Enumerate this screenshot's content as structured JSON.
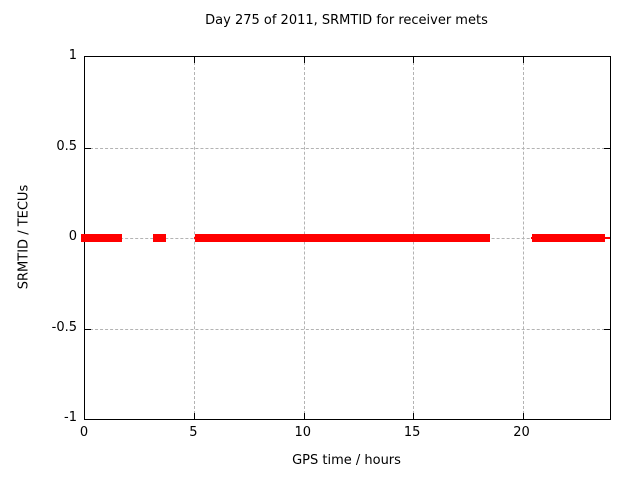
{
  "page": {
    "background_color": "#ffffff",
    "text_color": "#000000"
  },
  "chart_data": {
    "type": "line",
    "style": "gnuplot linespoints, horizontal segments at constant y",
    "title": "Day 275 of 2011, SRMTID for receiver mets",
    "xlabel": "GPS time / hours",
    "ylabel": "SRMTID / TECUs",
    "xlim": [
      0,
      24
    ],
    "ylim": [
      -1,
      1
    ],
    "xticks": [
      0,
      5,
      10,
      15,
      20
    ],
    "xtick_labels": [
      "0",
      "5",
      "10",
      "15",
      "20"
    ],
    "yticks": [
      1,
      0.5,
      0,
      -0.5,
      -1
    ],
    "ytick_labels": [
      "1",
      "0.5",
      "0",
      "-0.5",
      "-1"
    ],
    "grid": true,
    "legend": "none",
    "axis_color": "#000000",
    "grid_color": "#b3b3b3",
    "series": [
      {
        "name": "SRMTID",
        "color": "#ff0000",
        "y_value": 0,
        "segments_x_hours": [
          [
            0.0,
            1.5
          ],
          [
            3.3,
            3.5
          ],
          [
            5.2,
            18.35
          ],
          [
            20.6,
            23.6
          ]
        ],
        "thin_segments_x_hours": [
          [
            1.45,
            1.7
          ],
          [
            5.0,
            5.2
          ],
          [
            18.35,
            18.5
          ],
          [
            20.4,
            20.6
          ],
          [
            23.6,
            24.0
          ]
        ]
      }
    ]
  }
}
